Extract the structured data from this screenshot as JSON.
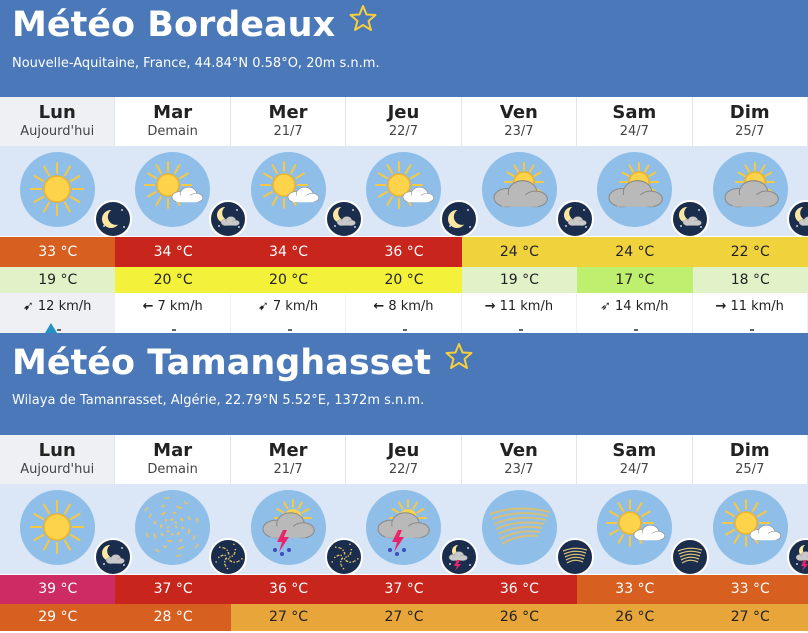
{
  "colors": {
    "header_bg": "#4a78b8",
    "icon_band_bg": "#dbe7f6",
    "temp_red": "#c8251c",
    "temp_orange": "#d75f20",
    "temp_yellow": "#f0d23c",
    "temp_pink": "#cc2b63"
  },
  "cities": [
    {
      "title": "Météo Bordeaux",
      "subtitle": "Nouvelle-Aquitaine, France, 44.84°N 0.58°O, 20m s.n.m.",
      "days": [
        {
          "name": "Lun",
          "date": "Aujourd'hui",
          "day_icon": "sun-icon",
          "night_icon": "moon-icon",
          "max": "33 °C",
          "max_color": "#d75f20",
          "min": "19 °C",
          "min_color": "#e1f2c9",
          "wind": "12 km/h",
          "wind_arrow": "➹"
        },
        {
          "name": "Mar",
          "date": "Demain",
          "day_icon": "sun-small-cloud-icon",
          "night_icon": "moon-cloud-icon",
          "max": "34 °C",
          "max_color": "#c8251c",
          "min": "20 °C",
          "min_color": "#f4f13a",
          "wind": "7 km/h",
          "wind_arrow": "←"
        },
        {
          "name": "Mer",
          "date": "21/7",
          "day_icon": "sun-small-cloud-icon",
          "night_icon": "moon-cloud-icon",
          "max": "34 °C",
          "max_color": "#c8251c",
          "min": "20 °C",
          "min_color": "#f4f13a",
          "wind": "7 km/h",
          "wind_arrow": "➹"
        },
        {
          "name": "Jeu",
          "date": "22/7",
          "day_icon": "sun-small-cloud-icon",
          "night_icon": "moon-icon",
          "max": "36 °C",
          "max_color": "#c8251c",
          "min": "20 °C",
          "min_color": "#f4f13a",
          "wind": "8 km/h",
          "wind_arrow": "←"
        },
        {
          "name": "Ven",
          "date": "23/7",
          "day_icon": "sun-cloud-icon",
          "night_icon": "moon-cloud-icon",
          "max": "24 °C",
          "max_color": "#f0d23c",
          "min": "19 °C",
          "min_color": "#e1f2c9",
          "wind": "11 km/h",
          "wind_arrow": "→"
        },
        {
          "name": "Sam",
          "date": "24/7",
          "day_icon": "sun-cloud-icon",
          "night_icon": "moon-cloud-icon",
          "max": "24 °C",
          "max_color": "#f0d23c",
          "min": "17 °C",
          "min_color": "#bfef6f",
          "wind": "14 km/h",
          "wind_arrow": "➶"
        },
        {
          "name": "Dim",
          "date": "25/7",
          "day_icon": "sun-cloud-icon",
          "night_icon": "moon-cloud-icon",
          "max": "22 °C",
          "max_color": "#f0d23c",
          "min": "18 °C",
          "min_color": "#e1f2c9",
          "wind": "11 km/h",
          "wind_arrow": "→"
        }
      ]
    },
    {
      "title": "Météo Tamanghasset",
      "subtitle": "Wilaya de Tamanrasset, Algérie, 22.79°N 5.52°E, 1372m s.n.m.",
      "days": [
        {
          "name": "Lun",
          "date": "Aujourd'hui",
          "day_icon": "sun-icon",
          "night_icon": "moon-cloud-icon",
          "max": "39 °C",
          "max_color": "#cc2b63",
          "min": "29 °C",
          "min_color": "#d75f20"
        },
        {
          "name": "Mar",
          "date": "Demain",
          "day_icon": "haze-icon",
          "night_icon": "haze-night-icon",
          "max": "37 °C",
          "max_color": "#c8251c",
          "min": "28 °C",
          "min_color": "#d75f20"
        },
        {
          "name": "Mer",
          "date": "21/7",
          "day_icon": "thunderstorm-icon",
          "night_icon": "haze-night-icon",
          "max": "36 °C",
          "max_color": "#c8251c",
          "min": "27 °C",
          "min_color": "#e8a53a"
        },
        {
          "name": "Jeu",
          "date": "22/7",
          "day_icon": "thunderstorm-icon",
          "night_icon": "night-storm-icon",
          "max": "37 °C",
          "max_color": "#c8251c",
          "min": "27 °C",
          "min_color": "#e8a53a"
        },
        {
          "name": "Ven",
          "date": "23/7",
          "day_icon": "dust-wind-icon",
          "night_icon": "dust-wind-night-icon",
          "max": "36 °C",
          "max_color": "#c8251c",
          "min": "26 °C",
          "min_color": "#e8a53a"
        },
        {
          "name": "Sam",
          "date": "24/7",
          "day_icon": "sun-small-cloud-icon",
          "night_icon": "dust-wind-night-icon",
          "max": "33 °C",
          "max_color": "#d75f20",
          "min": "26 °C",
          "min_color": "#e8a53a"
        },
        {
          "name": "Dim",
          "date": "25/7",
          "day_icon": "sun-small-cloud-icon",
          "night_icon": "night-storm-icon",
          "max": "33 °C",
          "max_color": "#d75f20",
          "min": "27 °C",
          "min_color": "#e8a53a"
        }
      ]
    }
  ]
}
